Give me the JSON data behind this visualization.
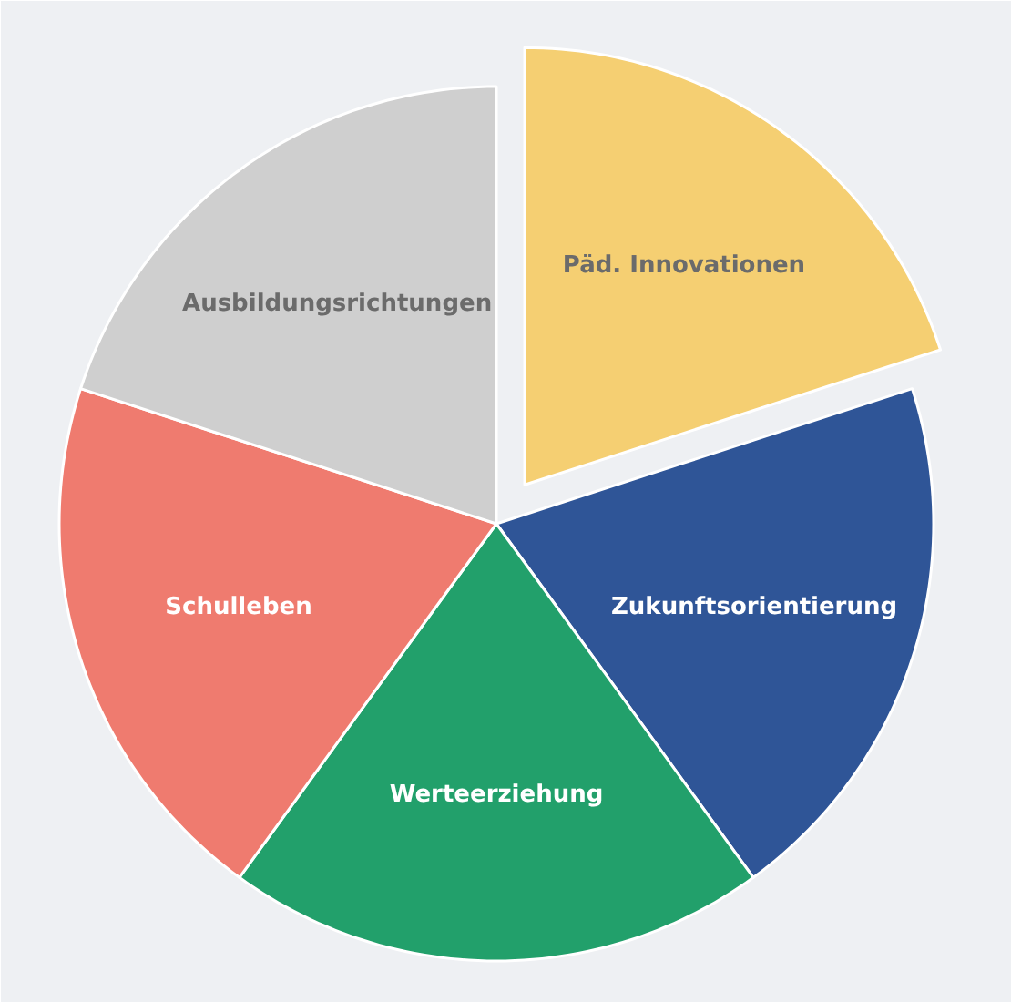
{
  "chart_data": {
    "type": "pie",
    "categories": [
      "Päd. Innovationen",
      "Zukunftsorientierung",
      "Werteerziehung",
      "Schulleben",
      "Ausbildungsrichtungen"
    ],
    "values": [
      20,
      20,
      20,
      20,
      20
    ],
    "colors": [
      "#f5cf72",
      "#2f5597",
      "#22a06b",
      "#ef7b6f",
      "#cfcfcf"
    ],
    "legend": false
  }
}
